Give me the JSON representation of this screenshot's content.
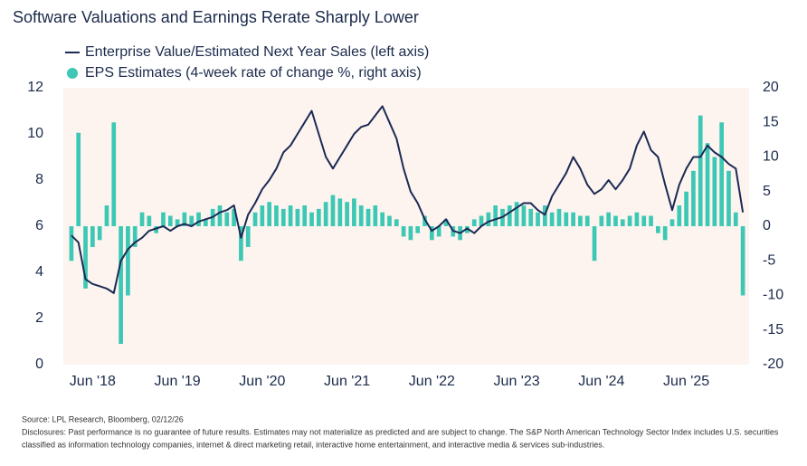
{
  "chart_data": {
    "type": "line-bar",
    "title": "Software Valuations and Earnings Rerate Sharply Lower",
    "categories": [
      null,
      null,
      null,
      "Jun '18",
      null,
      null,
      null,
      null,
      null,
      null,
      null,
      null,
      null,
      null,
      null,
      "Jun '19",
      null,
      null,
      null,
      null,
      null,
      null,
      null,
      null,
      null,
      null,
      null,
      "Jun '20",
      null,
      null,
      null,
      null,
      null,
      null,
      null,
      null,
      null,
      null,
      null,
      "Jun '21",
      null,
      null,
      null,
      null,
      null,
      null,
      null,
      null,
      null,
      null,
      null,
      "Jun '22",
      null,
      null,
      null,
      null,
      null,
      null,
      null,
      null,
      null,
      null,
      null,
      "Jun '23",
      null,
      null,
      null,
      null,
      null,
      null,
      null,
      null,
      null,
      null,
      null,
      "Jun '24",
      null,
      null,
      null,
      null,
      null,
      null,
      null,
      null,
      null,
      null,
      null,
      "Jun '25",
      null,
      null,
      null,
      null,
      null,
      null,
      null,
      null
    ],
    "series": [
      {
        "name": "Enterprise Value/Estimated Next Year Sales (left axis)",
        "type": "line",
        "color": "#1b2a55",
        "axis": "y",
        "values": [
          5.6,
          5.3,
          3.7,
          3.5,
          3.4,
          3.3,
          3.1,
          4.5,
          5.0,
          5.3,
          5.5,
          5.8,
          5.9,
          6.0,
          5.8,
          6.0,
          6.1,
          6.0,
          6.2,
          6.3,
          6.4,
          6.6,
          6.7,
          6.9,
          5.5,
          6.5,
          7.0,
          7.6,
          8.0,
          8.5,
          9.2,
          9.5,
          10.0,
          10.5,
          11.0,
          10.0,
          9.0,
          8.5,
          9.0,
          9.5,
          10.0,
          10.3,
          10.4,
          10.8,
          11.2,
          10.5,
          9.8,
          8.5,
          7.5,
          7.0,
          6.3,
          5.8,
          6.0,
          6.3,
          5.8,
          5.7,
          5.9,
          5.7,
          6.0,
          6.2,
          6.3,
          6.4,
          6.6,
          6.8,
          7.0,
          7.0,
          6.7,
          6.5,
          7.3,
          7.8,
          8.3,
          9.0,
          8.5,
          7.8,
          7.4,
          7.6,
          8.0,
          7.6,
          8.0,
          8.5,
          9.5,
          10.1,
          9.3,
          9.0,
          7.8,
          6.7,
          7.8,
          8.5,
          9.0,
          9.0,
          9.5,
          9.2,
          9.0,
          8.7,
          8.5,
          6.6
        ]
      },
      {
        "name": "EPS Estimates (4-week rate of change %, right axis)",
        "type": "bar",
        "color": "#3cc8b4",
        "axis": "y2",
        "values": [
          -5,
          13.5,
          -9,
          -3,
          -2,
          3,
          15,
          -17,
          -10,
          -3,
          2,
          1.5,
          -1,
          2,
          1.5,
          1,
          2,
          1.5,
          2,
          1,
          2.5,
          3,
          2,
          2.5,
          -5,
          -3,
          2,
          3,
          3.5,
          3,
          2.5,
          3,
          2.5,
          3,
          2,
          2.5,
          3.5,
          4.5,
          4,
          3.5,
          4,
          3,
          2.5,
          3,
          2,
          1.5,
          1,
          -1.5,
          -2,
          -1,
          1.5,
          -2,
          -1.5,
          1,
          -1.5,
          -2,
          -1,
          1,
          1.5,
          2,
          3,
          2.5,
          3,
          3.5,
          3,
          2.5,
          2,
          3,
          2,
          2.5,
          2,
          2,
          1.5,
          1.5,
          -5,
          1.5,
          2,
          1.5,
          1,
          1.5,
          2,
          1.5,
          1.5,
          -1,
          -2,
          1,
          3,
          5,
          8,
          16,
          12,
          10,
          15,
          8,
          2,
          -10
        ]
      }
    ],
    "ylim": [
      0,
      12
    ],
    "yticks": [
      0,
      2,
      4,
      6,
      8,
      10,
      12
    ],
    "y2lim": [
      -20,
      20
    ],
    "y2ticks": [
      -20,
      -15,
      -10,
      -5,
      0,
      5,
      10,
      15,
      20
    ],
    "background": "#fdf4ef",
    "source": "Source: LPL Research, Bloomberg, 02/12/26",
    "disclosure": [
      "Disclosures: Past performance is no guarantee of future results. Estimates may not materialize as predicted and are subject to change. The S&P North American Technology Sector Index includes U.S. securities",
      "classified as information technology companies, internet & direct marketing retail, interactive home entertainment, and interactive media & services sub-industries."
    ]
  }
}
